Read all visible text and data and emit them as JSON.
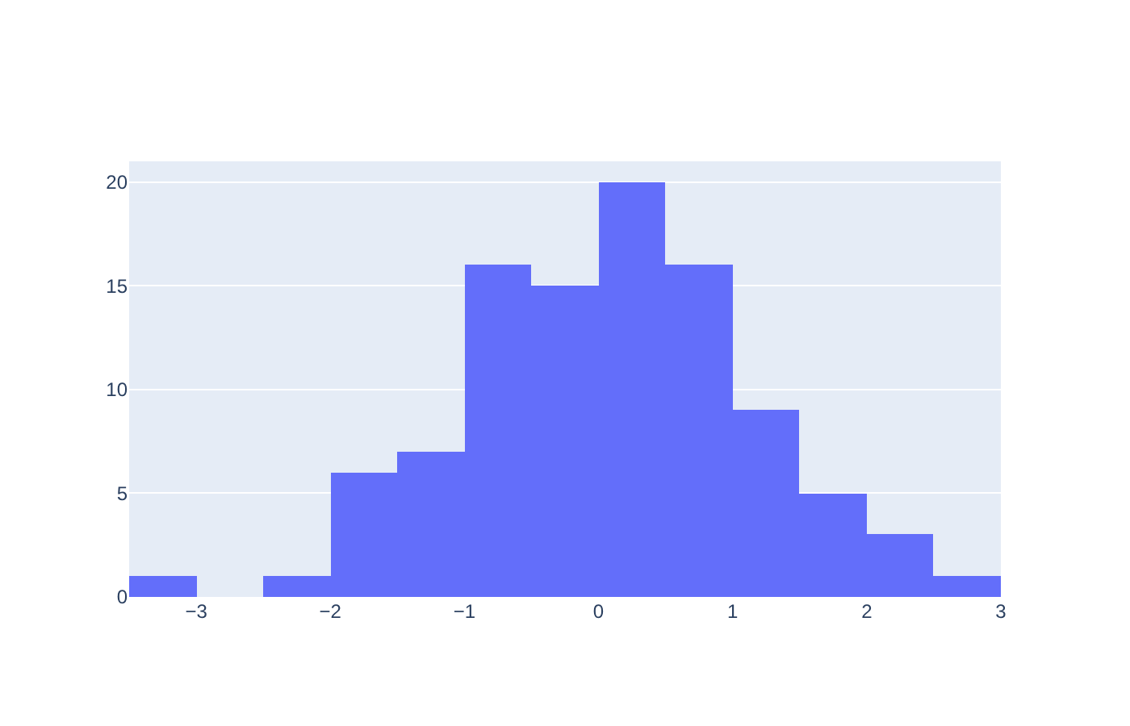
{
  "chart_data": {
    "type": "histogram",
    "bins": [
      -3.5,
      -3,
      -2.5,
      -2,
      -1.5,
      -1,
      -0.5,
      0,
      0.5,
      1,
      1.5,
      2,
      2.5,
      3
    ],
    "values": [
      1,
      0,
      1,
      6,
      7,
      16,
      15,
      20,
      16,
      9,
      5,
      3,
      1
    ],
    "color": "#636efa",
    "xlim": [
      -3.5,
      3
    ],
    "xticks": [
      {
        "value": -3,
        "label": "−3"
      },
      {
        "value": -2,
        "label": "−2"
      },
      {
        "value": -1,
        "label": "−1"
      },
      0,
      1,
      2,
      3
    ],
    "ylim": [
      0,
      21
    ],
    "yticks": [
      0,
      5,
      10,
      15,
      20
    ],
    "grid": "y"
  }
}
